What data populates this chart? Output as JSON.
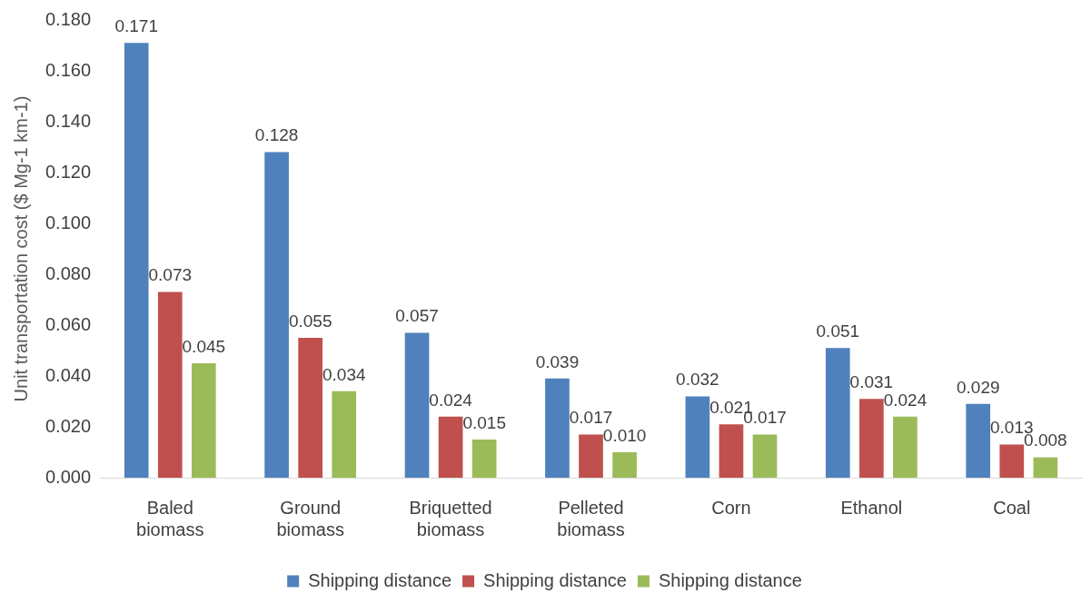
{
  "chart_data": {
    "type": "bar",
    "ylabel": "Unit transportation cost ($ Mg-1 km-1)",
    "categories": [
      "Baled biomass",
      "Ground biomass",
      "Briquetted biomass",
      "Pelleted biomass",
      "Corn",
      "Ethanol",
      "Coal"
    ],
    "series": [
      {
        "name": "Shipping distance",
        "color": "#4f81bd",
        "values": [
          0.171,
          0.128,
          0.057,
          0.039,
          0.032,
          0.051,
          0.029
        ],
        "value_labels": [
          "0.171",
          "0.128",
          "0.057",
          "0.039",
          "0.032",
          "0.051",
          "0.029"
        ]
      },
      {
        "name": "Shipping distance",
        "color": "#c0504d",
        "values": [
          0.073,
          0.055,
          0.024,
          0.017,
          0.021,
          0.031,
          0.013
        ],
        "value_labels": [
          "0.073",
          "0.055",
          "0.024",
          "0.017",
          "0.021",
          "0.031",
          "0.013"
        ]
      },
      {
        "name": "Shipping distance",
        "color": "#9bbb59",
        "values": [
          0.045,
          0.034,
          0.015,
          0.01,
          0.017,
          0.024,
          0.008
        ],
        "value_labels": [
          "0.045",
          "0.034",
          "0.015",
          "0.010",
          "0.017",
          "0.024",
          "0.008"
        ]
      }
    ],
    "ylim": [
      0,
      0.18
    ],
    "yticks": [
      {
        "value": 0,
        "label": "0.000"
      },
      {
        "value": 0.02,
        "label": "0.020"
      },
      {
        "value": 0.04,
        "label": "0.040"
      },
      {
        "value": 0.06,
        "label": "0.060"
      },
      {
        "value": 0.08,
        "label": "0.080"
      },
      {
        "value": 0.1,
        "label": "0.100"
      },
      {
        "value": 0.12,
        "label": "0.120"
      },
      {
        "value": 0.14,
        "label": "0.140"
      },
      {
        "value": 0.16,
        "label": "0.160"
      },
      {
        "value": 0.18,
        "label": "0.180"
      }
    ],
    "grid": false,
    "legend": "bottom"
  }
}
